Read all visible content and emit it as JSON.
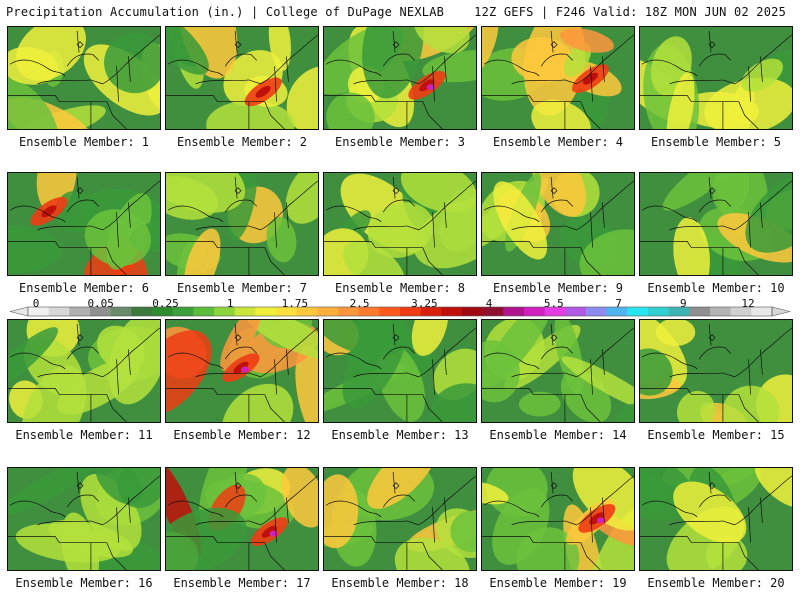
{
  "header": {
    "left": "Precipitation Accumulation (in.) | College of DuPage NEXLAB",
    "right": "12Z GEFS | F246 Valid: 18Z MON JUN 02 2025"
  },
  "members": [
    {
      "label": "Ensemble Member: 1",
      "intensity": 0.45
    },
    {
      "label": "Ensemble Member: 2",
      "intensity": 0.7
    },
    {
      "label": "Ensemble Member: 3",
      "intensity": 0.85
    },
    {
      "label": "Ensemble Member: 4",
      "intensity": 0.75
    },
    {
      "label": "Ensemble Member: 5",
      "intensity": 0.3
    },
    {
      "label": "Ensemble Member: 6",
      "intensity": 0.8
    },
    {
      "label": "Ensemble Member: 7",
      "intensity": 0.45
    },
    {
      "label": "Ensemble Member: 8",
      "intensity": 0.4
    },
    {
      "label": "Ensemble Member: 9",
      "intensity": 0.35
    },
    {
      "label": "Ensemble Member: 10",
      "intensity": 0.4
    },
    {
      "label": "Ensemble Member: 11",
      "intensity": 0.4
    },
    {
      "label": "Ensemble Member: 12",
      "intensity": 0.85
    },
    {
      "label": "Ensemble Member: 13",
      "intensity": 0.4
    },
    {
      "label": "Ensemble Member: 14",
      "intensity": 0.15
    },
    {
      "label": "Ensemble Member: 15",
      "intensity": 0.5
    },
    {
      "label": "Ensemble Member: 16",
      "intensity": 0.15
    },
    {
      "label": "Ensemble Member: 17",
      "intensity": 0.95
    },
    {
      "label": "Ensemble Member: 18",
      "intensity": 0.55
    },
    {
      "label": "Ensemble Member: 19",
      "intensity": 0.85
    },
    {
      "label": "Ensemble Member: 20",
      "intensity": 0.3
    }
  ],
  "colorbar": {
    "labels": [
      "0",
      "0.05",
      "0.25",
      "1",
      "1.75",
      "2.5",
      "3.25",
      "4",
      "5.5",
      "7",
      "9",
      "12"
    ],
    "colors": [
      "#f0f0f0",
      "#d8d8d8",
      "#b0b0b0",
      "#909090",
      "#6a8a6a",
      "#3c7a3c",
      "#2e8b2e",
      "#3ca03c",
      "#5cbc3c",
      "#8cd43c",
      "#c8e63c",
      "#f0f03c",
      "#ffe03c",
      "#ffc83c",
      "#ffb03c",
      "#ff963c",
      "#ff7a2c",
      "#ff5a1c",
      "#f03c14",
      "#d8200c",
      "#c0100c",
      "#a00814",
      "#901030",
      "#b0148c",
      "#d020c0",
      "#e63ce6",
      "#b05ae6",
      "#8c8cf0",
      "#50b4f0",
      "#28e6f0",
      "#30d0d0",
      "#3cb4b4",
      "#909090",
      "#b4b4b4",
      "#d0d0d0",
      "#e8e8e8"
    ]
  }
}
